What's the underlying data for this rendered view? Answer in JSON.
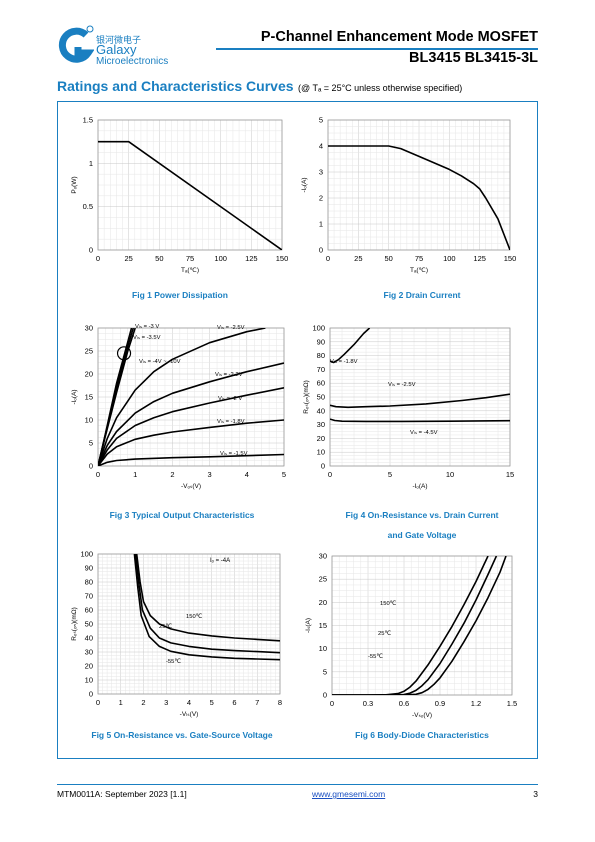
{
  "header": {
    "logo_cn": "银河微电子",
    "logo_line1": "Galaxy",
    "logo_line2": "Microelectronics",
    "title": "P-Channel Enhancement Mode MOSFET",
    "part_number": "BL3415  BL3415-3L"
  },
  "section": {
    "title": "Ratings and Characteristics Curves",
    "note": "(@ Tₐ = 25°C unless otherwise specified)"
  },
  "captions": {
    "fig1": "Fig 1    Power Dissipation",
    "fig2": "Fig 2    Drain Current",
    "fig3": "Fig 3    Typical Output Characteristics",
    "fig4_a": "Fig 4    On-Resistance vs. Drain Current",
    "fig4_b": "and Gate Voltage",
    "fig5": "Fig 5    On-Resistance vs. Gate-Source Voltage",
    "fig6": "Fig 6    Body-Diode Characteristics"
  },
  "footer": {
    "doc_id": "MTM0011A: September 2023 [1.1]",
    "website": "www.gmesemi.com",
    "page": "3"
  },
  "colors": {
    "accent": "#1a7fc1"
  },
  "chart_data": [
    {
      "id": "fig1",
      "type": "line",
      "xlabel": "Tₐ(℃)",
      "ylabel": "Pₒ(W)",
      "xlim": [
        0,
        150
      ],
      "ylim": [
        0,
        1.5
      ],
      "xticks": [
        0,
        25,
        50,
        75,
        100,
        125,
        150
      ],
      "yticks": [
        0,
        0.5,
        1,
        1.5
      ],
      "ytick_labels": [
        "0",
        "0.5",
        "1",
        "1.5"
      ],
      "series": [
        {
          "x": [
            0,
            25,
            150
          ],
          "y": [
            1.25,
            1.25,
            0
          ]
        }
      ]
    },
    {
      "id": "fig2",
      "type": "line",
      "xlabel": "Tₐ(℃)",
      "ylabel": "-Iₒ(A)",
      "xlim": [
        0,
        150
      ],
      "ylim": [
        0,
        5
      ],
      "xticks": [
        0,
        25,
        50,
        75,
        100,
        125,
        150
      ],
      "yticks": [
        0,
        1,
        2,
        3,
        4,
        5
      ],
      "series": [
        {
          "x": [
            0,
            25,
            50,
            60,
            75,
            100,
            110,
            120,
            125,
            130,
            140,
            150
          ],
          "y": [
            4,
            4,
            4,
            3.9,
            3.6,
            3.1,
            2.85,
            2.55,
            2.35,
            2.0,
            1.2,
            0
          ]
        }
      ]
    },
    {
      "id": "fig3",
      "type": "line",
      "xlabel": "-Vₒₛ(V)",
      "ylabel": "-Iₒ(A)",
      "xlim": [
        0,
        5
      ],
      "ylim": [
        0,
        30
      ],
      "xticks": [
        0,
        1,
        2,
        3,
        4,
        5
      ],
      "yticks": [
        0,
        5,
        10,
        15,
        20,
        25,
        30
      ],
      "series": [
        {
          "name": "Vₗₛ = -3 V",
          "x": [
            0,
            0.2,
            0.5,
            0.8,
            1.0
          ],
          "y": [
            0,
            6.5,
            16,
            25,
            30
          ]
        },
        {
          "name": "Vₗₛ = -3.5V",
          "x": [
            0,
            0.2,
            0.5,
            0.8,
            0.95
          ],
          "y": [
            0,
            6.8,
            17,
            26,
            30
          ]
        },
        {
          "name": "Vₗₛ = -4V ~ -10V",
          "x": [
            0,
            0.2,
            0.5,
            0.8,
            0.9
          ],
          "y": [
            0,
            7,
            18,
            27,
            30
          ]
        },
        {
          "name": "Vₗₛ = -2.5V",
          "x": [
            0,
            0.25,
            0.5,
            1,
            1.5,
            2,
            3,
            4,
            4.5
          ],
          "y": [
            0,
            6,
            10.5,
            16.5,
            20.5,
            23.2,
            26.8,
            29.2,
            30
          ]
        },
        {
          "name": "Vₗₛ = -2.2V",
          "x": [
            0,
            0.25,
            0.5,
            1,
            1.5,
            2,
            3,
            4,
            5
          ],
          "y": [
            0,
            4.5,
            7.5,
            11.5,
            14,
            15.8,
            18.3,
            20.5,
            22.4
          ]
        },
        {
          "name": "Vₗₛ = -2 V",
          "x": [
            0,
            0.25,
            0.5,
            1,
            1.5,
            2,
            3,
            4,
            5
          ],
          "y": [
            0,
            3.5,
            6,
            8.8,
            10.5,
            11.8,
            13.7,
            15.4,
            17
          ]
        },
        {
          "name": "Vₗₛ = -1.8V",
          "x": [
            0,
            0.25,
            0.5,
            1,
            1.5,
            2,
            3,
            4,
            5
          ],
          "y": [
            0,
            2.6,
            4.2,
            5.8,
            6.7,
            7.4,
            8.4,
            9.3,
            10
          ]
        },
        {
          "name": "Vₗₛ = -1.5V",
          "x": [
            0,
            0.25,
            0.5,
            1,
            2,
            3,
            4,
            5
          ],
          "y": [
            0,
            0.8,
            1.2,
            1.5,
            1.8,
            2.0,
            2.25,
            2.5
          ]
        }
      ]
    },
    {
      "id": "fig4",
      "type": "line",
      "xlabel": "-Iₒ(A)",
      "ylabel": "Rₒₛ(ₒₙ)(mΩ)",
      "xlim": [
        0,
        15
      ],
      "ylim": [
        0,
        100
      ],
      "xticks": [
        0,
        5,
        10,
        15
      ],
      "yticks": [
        0,
        10,
        20,
        30,
        40,
        50,
        60,
        70,
        80,
        90,
        100
      ],
      "series": [
        {
          "name": "Vₗₛ = -1.8V",
          "x": [
            0,
            0.3,
            0.7,
            1.2,
            2,
            2.8,
            3.3
          ],
          "y": [
            76,
            75,
            77,
            81,
            88,
            96,
            100
          ]
        },
        {
          "name": "Vₗₛ = -2.5V",
          "x": [
            0,
            0.5,
            1.5,
            3,
            5,
            8,
            11,
            13,
            15
          ],
          "y": [
            44,
            43,
            42.5,
            43,
            43.5,
            45,
            47.5,
            49.5,
            52
          ]
        },
        {
          "name": "Vₗₛ = -4.5V",
          "x": [
            0,
            0.4,
            1,
            3,
            6,
            10,
            15
          ],
          "y": [
            34,
            33,
            32.5,
            32.3,
            32.3,
            32.5,
            32.8
          ]
        }
      ]
    },
    {
      "id": "fig5",
      "type": "line",
      "xlabel": "-Vₗₛ(V)",
      "ylabel": "Rₒₛ(ₒₙ)(mΩ)",
      "xlim": [
        0,
        8
      ],
      "ylim": [
        0,
        100
      ],
      "xticks": [
        0,
        1,
        2,
        3,
        4,
        5,
        6,
        7,
        8
      ],
      "yticks": [
        0,
        10,
        20,
        30,
        40,
        50,
        60,
        70,
        80,
        90,
        100
      ],
      "annotation": "Iₒ = -4A",
      "series": [
        {
          "name": "150℃",
          "x": [
            1.7,
            1.85,
            2.0,
            2.3,
            2.7,
            3.2,
            4,
            5,
            6,
            7,
            8
          ],
          "y": [
            100,
            80,
            66,
            56,
            50,
            46.5,
            43.5,
            41.5,
            40,
            39,
            38
          ]
        },
        {
          "name": "25℃",
          "x": [
            1.65,
            1.8,
            1.95,
            2.3,
            2.7,
            3.2,
            4,
            5,
            6,
            7,
            8
          ],
          "y": [
            100,
            78,
            60,
            47,
            40,
            36.5,
            34,
            32,
            31,
            30.3,
            29.5
          ]
        },
        {
          "name": "-55℃",
          "x": [
            1.6,
            1.75,
            1.9,
            2.25,
            2.7,
            3.2,
            4,
            5,
            6,
            7,
            8
          ],
          "y": [
            100,
            76,
            56,
            41,
            34,
            30.5,
            28,
            26.5,
            25.5,
            25,
            24.5
          ]
        }
      ]
    },
    {
      "id": "fig6",
      "type": "line",
      "xlabel": "-Vₛₒ(V)",
      "ylabel": "-Iₛ(A)",
      "xlim": [
        0,
        1.5
      ],
      "ylim": [
        0,
        30
      ],
      "xticks": [
        0,
        0.3,
        0.6,
        0.9,
        1.2,
        1.5
      ],
      "xtick_labels": [
        "0",
        "0.3",
        "0.6",
        "0.9",
        "1.2",
        "1.5"
      ],
      "yticks": [
        0,
        5,
        10,
        15,
        20,
        25,
        30
      ],
      "series": [
        {
          "name": "150℃",
          "x": [
            0,
            0.3,
            0.45,
            0.55,
            0.6,
            0.65,
            0.7,
            0.8,
            0.9,
            1.0,
            1.1,
            1.2,
            1.3
          ],
          "y": [
            0,
            0,
            0.05,
            0.3,
            0.8,
            1.7,
            3,
            6.5,
            10.5,
            14.8,
            19.5,
            24.5,
            30
          ]
        },
        {
          "name": "25℃",
          "x": [
            0,
            0.5,
            0.6,
            0.65,
            0.7,
            0.75,
            0.8,
            0.9,
            1.0,
            1.1,
            1.2,
            1.3,
            1.37
          ],
          "y": [
            0,
            0,
            0.1,
            0.4,
            1.0,
            2.0,
            3.3,
            6.8,
            11,
            15.5,
            20.5,
            26,
            30
          ]
        },
        {
          "name": "-55℃",
          "x": [
            0,
            0.6,
            0.7,
            0.75,
            0.8,
            0.85,
            0.9,
            1.0,
            1.1,
            1.2,
            1.3,
            1.4,
            1.45
          ],
          "y": [
            0,
            0,
            0.15,
            0.5,
            1.2,
            2.3,
            3.7,
            7.3,
            11.5,
            16,
            21,
            26.5,
            30
          ]
        }
      ]
    }
  ]
}
